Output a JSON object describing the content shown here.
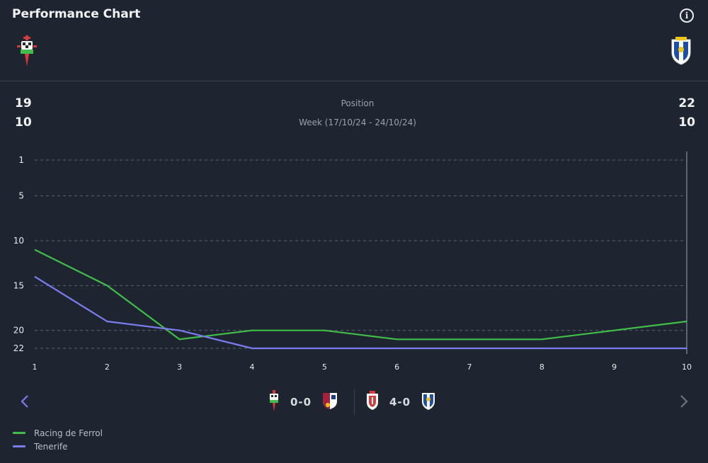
{
  "header": {
    "title": "Performance Chart"
  },
  "teams": {
    "home": {
      "name": "Racing de Ferrol",
      "position": "19",
      "week": "10",
      "color": "#3fbf4a"
    },
    "away": {
      "name": "Tenerife",
      "position": "22",
      "week": "10",
      "color": "#7b7cf0"
    }
  },
  "labels": {
    "position": "Position",
    "week": "Week (17/10/24 - 24/10/24)"
  },
  "chart_data": {
    "type": "line",
    "x": [
      1,
      2,
      3,
      4,
      5,
      6,
      7,
      8,
      9,
      10
    ],
    "series": [
      {
        "name": "Racing de Ferrol",
        "color": "#3fbf4a",
        "values": [
          11,
          15,
          21,
          20,
          20,
          21,
          21,
          21,
          20,
          19
        ]
      },
      {
        "name": "Tenerife",
        "color": "#7b7cf0",
        "values": [
          14,
          19,
          20,
          22,
          22,
          22,
          22,
          22,
          22,
          22
        ]
      }
    ],
    "yticks": [
      1,
      5,
      10,
      15,
      20,
      22
    ],
    "ylim": [
      1,
      22
    ],
    "y_inverted": true,
    "xlim": [
      1,
      10
    ],
    "grid": true,
    "highlight_x": 10,
    "legend_placement": "bottom-left"
  },
  "matches": [
    {
      "score": "0-0"
    },
    {
      "score": "4-0"
    }
  ],
  "legend": [
    {
      "label": "Racing de Ferrol",
      "color": "#3fbf4a"
    },
    {
      "label": "Tenerife",
      "color": "#7b7cf0"
    }
  ]
}
